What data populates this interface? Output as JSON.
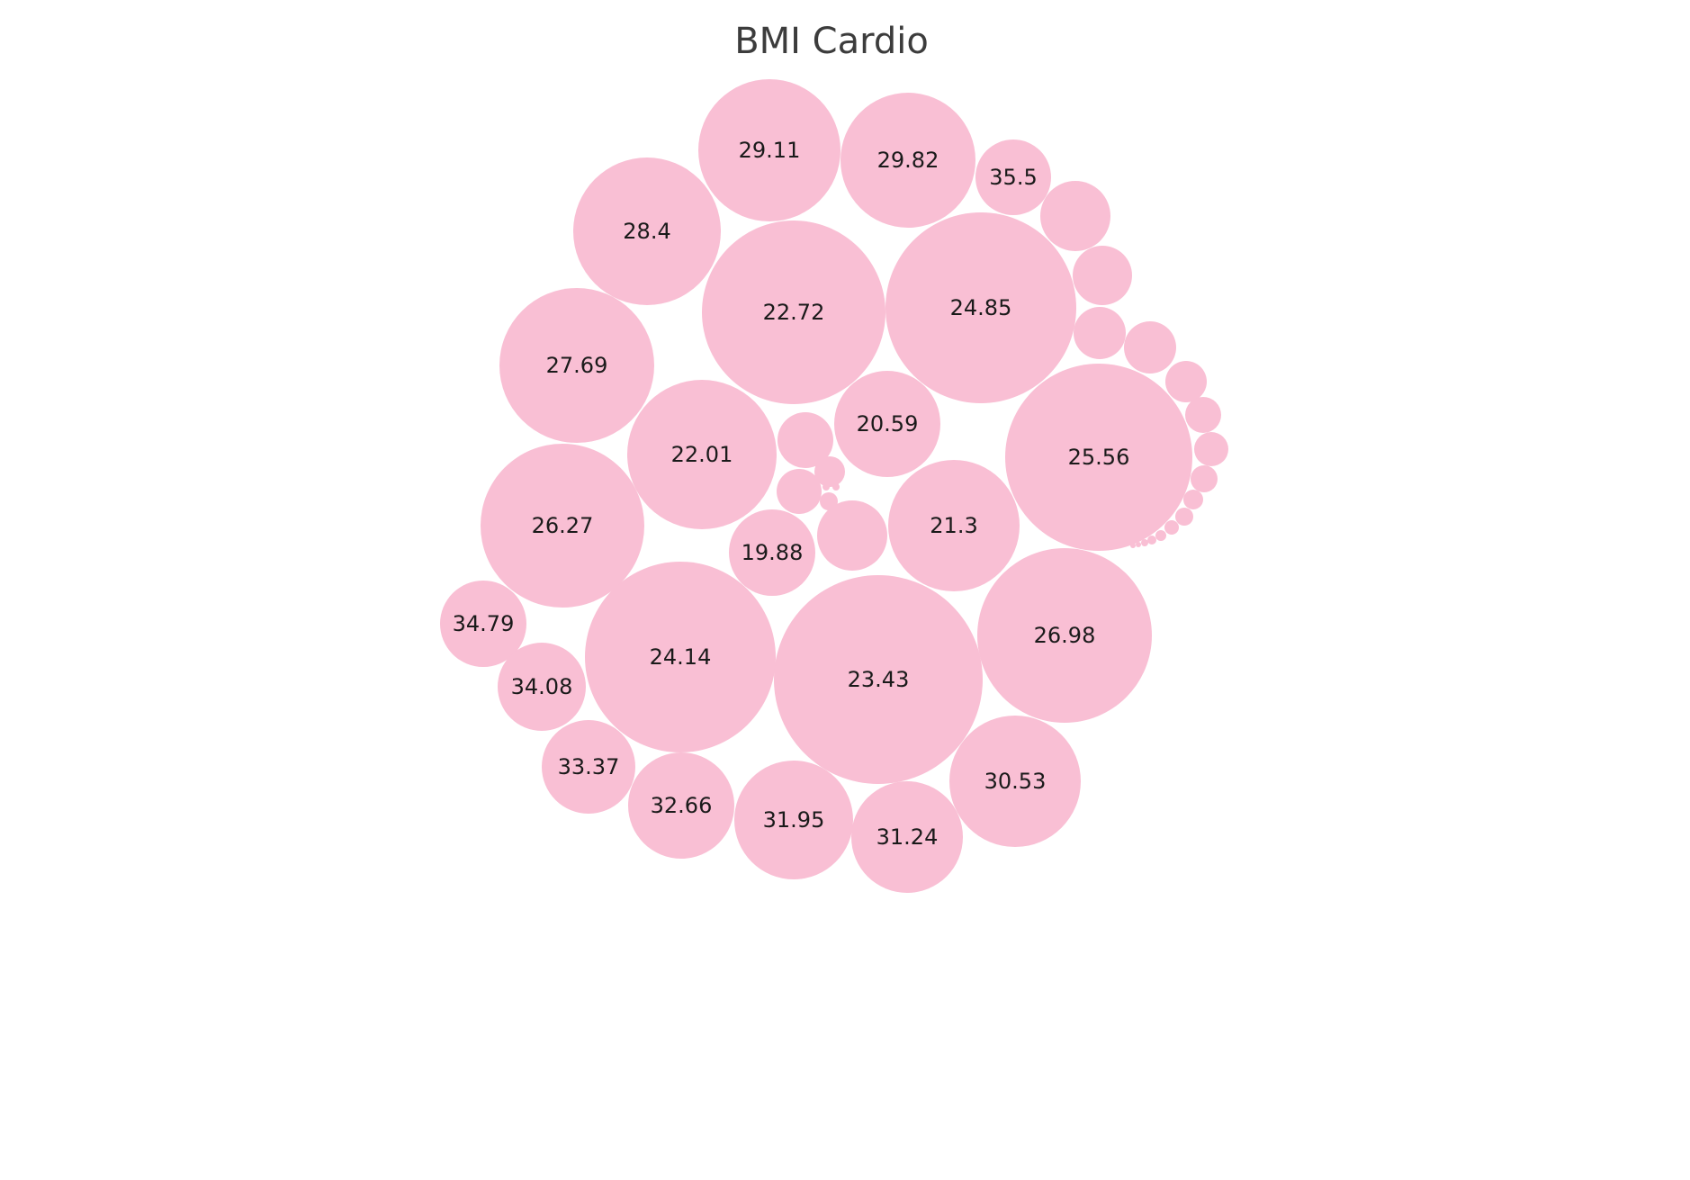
{
  "chart_data": {
    "type": "bubble",
    "title": "BMI Cardio",
    "color": "#f9bfd4",
    "label_color": "#1a1a1a",
    "labeled_bubbles": [
      "29.11",
      "29.82",
      "35.5",
      "28.4",
      "22.72",
      "24.85",
      "27.69",
      "22.01",
      "20.59",
      "25.56",
      "26.27",
      "19.88",
      "21.3",
      "34.79",
      "34.08",
      "24.14",
      "23.43",
      "26.98",
      "33.37",
      "32.66",
      "31.95",
      "31.24",
      "30.53"
    ]
  }
}
